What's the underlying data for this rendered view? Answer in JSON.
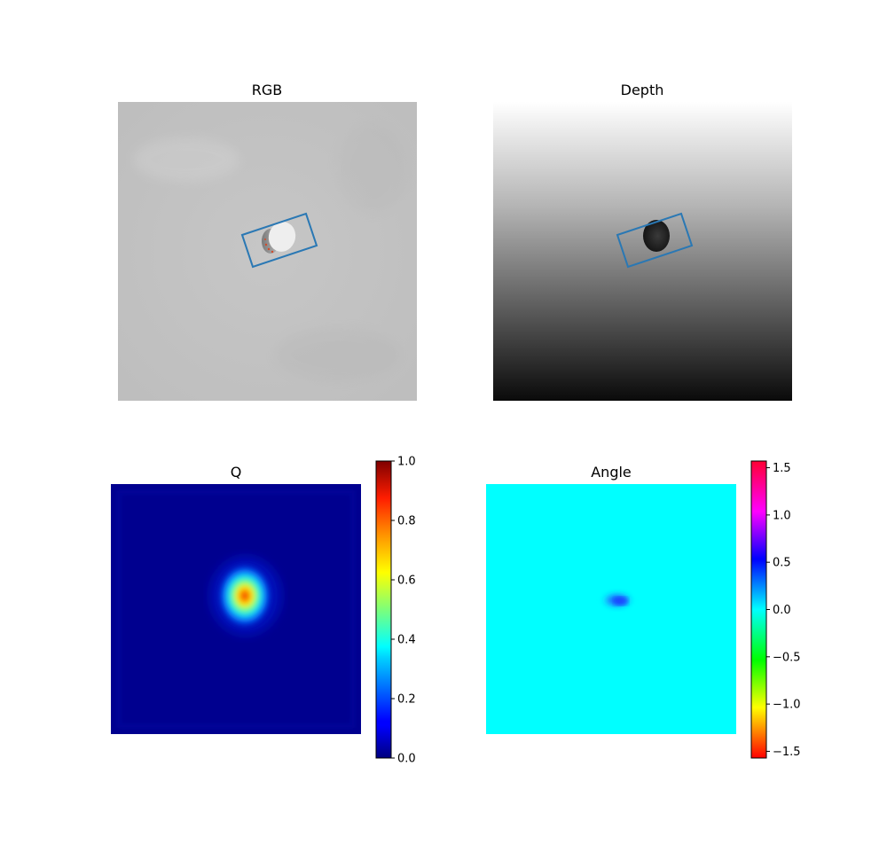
{
  "chart_data": [
    {
      "type": "heatmap",
      "title": "RGB",
      "image": "rgb-photo",
      "axes": "off",
      "grasp_rectangle": {
        "color": "#2a78b4"
      },
      "colors": {
        "background": "#c2c2c2",
        "object": "#e8e8e8",
        "object_shadow": "#8a8a8a"
      }
    },
    {
      "type": "heatmap",
      "title": "Depth",
      "image": "depth-map",
      "axes": "off",
      "grasp_rectangle": {
        "color": "#2a78b4"
      },
      "colors": {
        "top": "#ffffff",
        "bottom": "#0a0a0a",
        "object": "#1e1e1e"
      }
    },
    {
      "type": "heatmap",
      "title": "Q",
      "colormap": "jet",
      "axes": "off",
      "colorbar": {
        "range": [
          0.0,
          1.0
        ],
        "ticks": [
          0.0,
          0.2,
          0.4,
          0.6,
          0.8,
          1.0
        ],
        "tick_labels": [
          "0.0",
          "0.2",
          "0.4",
          "0.6",
          "0.8",
          "1.0"
        ]
      },
      "values_summary": {
        "background": 0.03,
        "peak": 0.82
      }
    },
    {
      "type": "heatmap",
      "title": "Angle",
      "colormap": "hsv",
      "axes": "off",
      "colorbar": {
        "range": [
          -1.5708,
          1.5708
        ],
        "ticks": [
          1.5,
          1.0,
          0.5,
          0.0,
          -0.5,
          -1.0,
          -1.5
        ],
        "tick_labels": [
          "1.5",
          "1.0",
          "0.5",
          "0.0",
          "−0.5",
          "−1.0",
          "−1.5"
        ]
      },
      "values_summary": {
        "background": 0.0,
        "blob": 0.45
      }
    }
  ]
}
